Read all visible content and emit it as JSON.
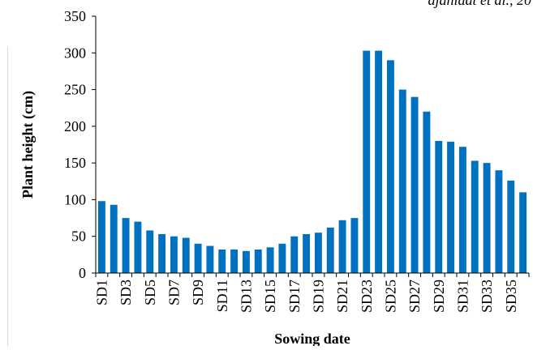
{
  "header": {
    "corner_text": "ajahidat et al., 20"
  },
  "chart_data": {
    "type": "bar",
    "categories": [
      "SD1",
      "SD2",
      "SD3",
      "SD4",
      "SD5",
      "SD6",
      "SD7",
      "SD8",
      "SD9",
      "SD10",
      "SD11",
      "SD12",
      "SD13",
      "SD14",
      "SD15",
      "SD16",
      "SD17",
      "SD18",
      "SD19",
      "SD20",
      "SD21",
      "SD22",
      "SD23",
      "SD24",
      "SD25",
      "SD26",
      "SD27",
      "SD28",
      "SD29",
      "SD30",
      "SD31",
      "SD32",
      "SD33",
      "SD34",
      "SD35",
      "SD36"
    ],
    "tick_labels": [
      "SD1",
      "SD3",
      "SD5",
      "SD7",
      "SD9",
      "SD11",
      "SD13",
      "SD15",
      "SD17",
      "SD19",
      "SD21",
      "SD23",
      "SD25",
      "SD27",
      "SD29",
      "SD31",
      "SD33",
      "SD35"
    ],
    "values": [
      98,
      93,
      75,
      70,
      58,
      53,
      50,
      48,
      40,
      37,
      32,
      32,
      30,
      32,
      35,
      40,
      50,
      53,
      55,
      62,
      72,
      75,
      303,
      303,
      290,
      250,
      240,
      220,
      180,
      179,
      172,
      153,
      150,
      140,
      126,
      110
    ],
    "title": "",
    "xlabel": "Sowing date",
    "ylabel": "Plant height (cm)",
    "ylim": [
      0,
      350
    ],
    "yticks": [
      0,
      50,
      100,
      150,
      200,
      250,
      300,
      350
    ],
    "grid": false,
    "bar_color": "#0070c0"
  }
}
